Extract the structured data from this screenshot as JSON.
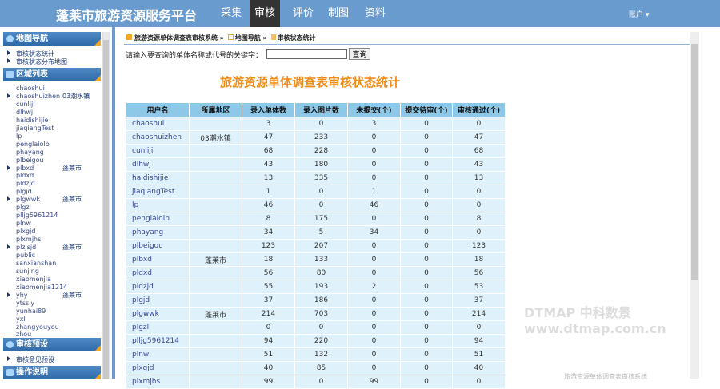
{
  "header": {
    "brand": "蓬莱市旅游资源服务平台",
    "nav": [
      "采集",
      "审核",
      "评价",
      "制图",
      "资料"
    ],
    "active": "审核",
    "account": "账户 ▾"
  },
  "sidebar": {
    "sections": [
      {
        "title": "地图导航",
        "icon": "globe-icon",
        "links": [
          "审核状态统计",
          "审核状态分布地图"
        ]
      },
      {
        "title": "区域列表",
        "icon": "list-icon"
      },
      {
        "title": "审核预设",
        "icon": "chat-icon",
        "links": [
          "审核意见预设"
        ]
      },
      {
        "title": "操作说明",
        "icon": "help-icon"
      }
    ],
    "users": [
      {
        "name": "chaoshui"
      },
      {
        "name": "chaoshuizhen",
        "region": "03潮水镇",
        "expand": true
      },
      {
        "name": "cunliji"
      },
      {
        "name": "dlhwj"
      },
      {
        "name": "haidishijie"
      },
      {
        "name": "jiaqiangTest"
      },
      {
        "name": "lp"
      },
      {
        "name": "penglaiolb"
      },
      {
        "name": "phayang"
      },
      {
        "name": "plbeigou"
      },
      {
        "name": "plbxd",
        "region": "蓬莱市",
        "expand": true
      },
      {
        "name": "pldxd"
      },
      {
        "name": "pldzjd"
      },
      {
        "name": "plgjd"
      },
      {
        "name": "plgwwk",
        "region": "蓬莱市",
        "expand": true
      },
      {
        "name": "plgzl"
      },
      {
        "name": "plljg5961214"
      },
      {
        "name": "plnw"
      },
      {
        "name": "plxgjd"
      },
      {
        "name": "plxmjhs"
      },
      {
        "name": "plzjsjd",
        "region": "蓬莱市",
        "expand": true
      },
      {
        "name": "public"
      },
      {
        "name": "sanxianshan"
      },
      {
        "name": "sunjing"
      },
      {
        "name": "xiaomenjia"
      },
      {
        "name": "xiaomenjia1214"
      },
      {
        "name": "yhy",
        "region": "蓬莱市",
        "expand": true
      },
      {
        "name": "ytssly"
      },
      {
        "name": "yunhai89"
      },
      {
        "name": "yxl"
      },
      {
        "name": "zhangyouyou"
      },
      {
        "name": "zhou"
      }
    ]
  },
  "main": {
    "breadcrumb": [
      "旅游资源单体调查表审核系统",
      "地图导航",
      "审核状态统计"
    ],
    "breadcrumb_sep": "»",
    "search_label": "请输入要查询的单体名称或代号的关键字：",
    "search_value": "",
    "search_button": "查询",
    "title": "旅游资源单体调查表审核状态统计",
    "table": {
      "columns": [
        "用户名",
        "所属地区",
        "录入单体数",
        "录入图片数",
        "未提交(个)",
        "提交待审(个)",
        "审核通过(个)"
      ],
      "rows": [
        [
          "chaoshui",
          "",
          "3",
          "0",
          "3",
          "0",
          "0"
        ],
        [
          "chaoshuizhen",
          "03潮水镇",
          "47",
          "233",
          "0",
          "0",
          "47"
        ],
        [
          "cunliji",
          "",
          "68",
          "228",
          "0",
          "0",
          "68"
        ],
        [
          "dlhwj",
          "",
          "43",
          "180",
          "0",
          "0",
          "43"
        ],
        [
          "haidishijie",
          "",
          "13",
          "335",
          "0",
          "0",
          "13"
        ],
        [
          "jiaqiangTest",
          "",
          "1",
          "0",
          "1",
          "0",
          "0"
        ],
        [
          "lp",
          "",
          "46",
          "0",
          "46",
          "0",
          "0"
        ],
        [
          "penglaiolb",
          "",
          "8",
          "175",
          "0",
          "0",
          "8"
        ],
        [
          "phayang",
          "",
          "34",
          "5",
          "34",
          "0",
          "0"
        ],
        [
          "plbeigou",
          "",
          "123",
          "207",
          "0",
          "0",
          "123"
        ],
        [
          "plbxd",
          "蓬莱市",
          "18",
          "133",
          "0",
          "0",
          "18"
        ],
        [
          "pldxd",
          "",
          "56",
          "80",
          "0",
          "0",
          "56"
        ],
        [
          "pldzjd",
          "",
          "55",
          "193",
          "2",
          "0",
          "53"
        ],
        [
          "plgjd",
          "",
          "37",
          "186",
          "0",
          "0",
          "37"
        ],
        [
          "plgwwk",
          "蓬莱市",
          "214",
          "703",
          "0",
          "0",
          "214"
        ],
        [
          "plgzl",
          "",
          "0",
          "0",
          "0",
          "0",
          "0"
        ],
        [
          "plljg5961214",
          "",
          "94",
          "220",
          "0",
          "0",
          "94"
        ],
        [
          "plnw",
          "",
          "51",
          "132",
          "0",
          "0",
          "51"
        ],
        [
          "plxgjd",
          "",
          "40",
          "85",
          "0",
          "0",
          "40"
        ],
        [
          "plxmjhs",
          "",
          "99",
          "0",
          "99",
          "0",
          "0"
        ]
      ]
    }
  },
  "watermark": {
    "line1": "DTMAP 中科数景",
    "line2": "www.dtmap.com.cn",
    "footer": "旅游资源单体调查表审核系统"
  }
}
